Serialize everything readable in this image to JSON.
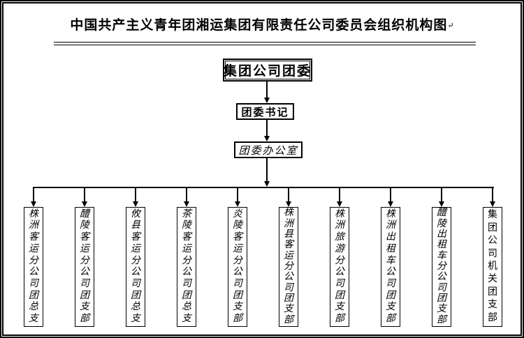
{
  "title": {
    "text": "中国共产主义青年团湘运集团有限责任公司委员会组织机构图",
    "paragraph_mark": "↵"
  },
  "org": {
    "root": "集团公司团委",
    "secretary": "团委书记",
    "office": "团委办公室",
    "branches": [
      "株洲客运分公司团总支",
      "醴陵客运分公司团支部",
      "攸县客运分公司团总支",
      "茶陵客运分公司团总支",
      "炎陵客运分公司团支部",
      "株洲县客运分公司团支部",
      "株洲旅游分公司团支部",
      "株洲出租车公司团支部",
      "醴陵出租车分公司团支部",
      "集团公司机关团支部"
    ]
  },
  "colors": {
    "line": "#000000",
    "text": "#000000",
    "background": "#ffffff"
  }
}
